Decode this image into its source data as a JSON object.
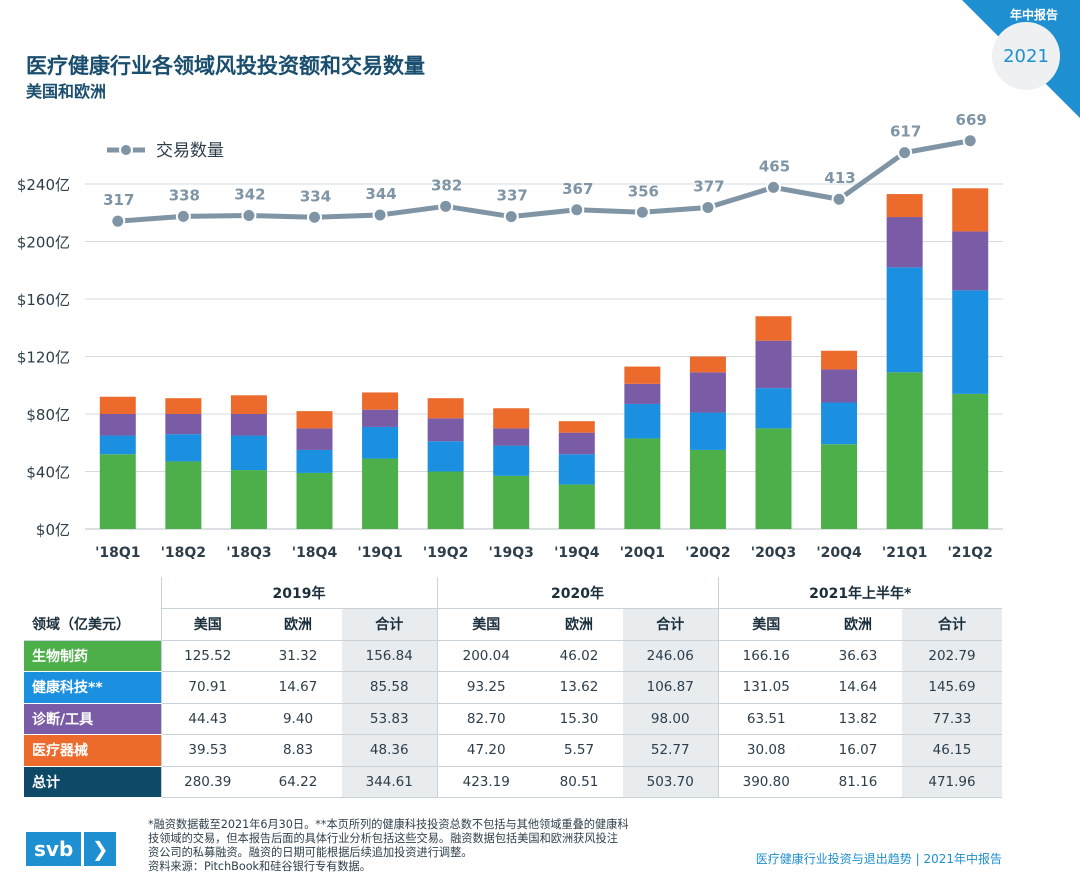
{
  "header": {
    "corner_label": "年中报告",
    "year": "2021",
    "title": "医疗健康行业各领域风投投资额和交易数量",
    "subtitle": "美国和欧洲"
  },
  "colors": {
    "biopharma": "#4caf4a",
    "healthtech": "#1b8fe0",
    "dx_tools": "#7a5ba6",
    "device": "#ec6a2b",
    "total": "#0e4a67",
    "line": "#7f95a6",
    "corner": "#1e8fd0"
  },
  "chart_data": {
    "type": "bar",
    "stacked": true,
    "categories": [
      "'18Q1",
      "'18Q2",
      "'18Q3",
      "'18Q4",
      "'19Q1",
      "'19Q2",
      "'19Q3",
      "'19Q4",
      "'20Q1",
      "'20Q2",
      "'20Q3",
      "'20Q4",
      "'21Q1",
      "'21Q2"
    ],
    "series": [
      {
        "name": "生物制药",
        "color_key": "biopharma",
        "values": [
          52,
          47,
          41,
          39,
          49,
          40,
          37,
          31,
          63,
          55,
          70,
          59,
          109,
          94
        ]
      },
      {
        "name": "健康科技",
        "color_key": "healthtech",
        "values": [
          13,
          19,
          24,
          16,
          22,
          21,
          21,
          21,
          24,
          26,
          28,
          29,
          73,
          72
        ]
      },
      {
        "name": "诊断/工具",
        "color_key": "dx_tools",
        "values": [
          15,
          14,
          15,
          15,
          12,
          16,
          12,
          15,
          14,
          28,
          33,
          23,
          35,
          41
        ]
      },
      {
        "name": "医疗器械",
        "color_key": "device",
        "values": [
          12,
          11,
          13,
          12,
          12,
          14,
          14,
          8,
          12,
          11,
          17,
          13,
          16,
          30
        ]
      }
    ],
    "line_series": {
      "name": "交易数量",
      "values": [
        317,
        338,
        342,
        334,
        344,
        382,
        337,
        367,
        356,
        377,
        465,
        413,
        617,
        669
      ]
    },
    "yticks": [
      "$0亿",
      "$40亿",
      "$80亿",
      "$120亿",
      "$160亿",
      "$200亿",
      "$240亿"
    ],
    "ylim": [
      0,
      240
    ],
    "line_ylim": [
      -1030,
      716
    ],
    "legend_position": "top-left",
    "grid": true
  },
  "table": {
    "periods": [
      "2019年",
      "2020年",
      "2021年上半年*"
    ],
    "col_label": "领域（亿美元）",
    "sub_headers": [
      "美国",
      "欧洲",
      "合计"
    ],
    "rows": [
      {
        "label": "生物制药",
        "color_key": "biopharma",
        "values": [
          "125.52",
          "31.32",
          "156.84",
          "200.04",
          "46.02",
          "246.06",
          "166.16",
          "36.63",
          "202.79"
        ]
      },
      {
        "label": "健康科技**",
        "color_key": "healthtech",
        "values": [
          "70.91",
          "14.67",
          "85.58",
          "93.25",
          "13.62",
          "106.87",
          "131.05",
          "14.64",
          "145.69"
        ]
      },
      {
        "label": "诊断/工具",
        "color_key": "dx_tools",
        "values": [
          "44.43",
          "9.40",
          "53.83",
          "82.70",
          "15.30",
          "98.00",
          "63.51",
          "13.82",
          "77.33"
        ]
      },
      {
        "label": "医疗器械",
        "color_key": "device",
        "values": [
          "39.53",
          "8.83",
          "48.36",
          "47.20",
          "5.57",
          "52.77",
          "30.08",
          "16.07",
          "46.15"
        ]
      },
      {
        "label": "总计",
        "color_key": "total",
        "values": [
          "280.39",
          "64.22",
          "344.61",
          "423.19",
          "80.51",
          "503.70",
          "390.80",
          "81.16",
          "471.96"
        ]
      }
    ]
  },
  "footer": {
    "footnote_lines": [
      "*融资数据截至2021年6月30日。**本页所列的健康科技投资总数不包括与其他领域重叠的健康科",
      "技领域的交易，但本报告后面的具体行业分析包括这些交易。融资数据包括美国和欧洲获风投注",
      "资公司的私募融资。融资的日期可能根据后续追加投资进行调整。",
      "资料来源：PitchBook和硅谷银行专有数据。"
    ],
    "logo_text": "svb",
    "logo_arrow": "❯",
    "right_text": "医疗健康行业投资与退出趋势 | 2021年中报告"
  }
}
